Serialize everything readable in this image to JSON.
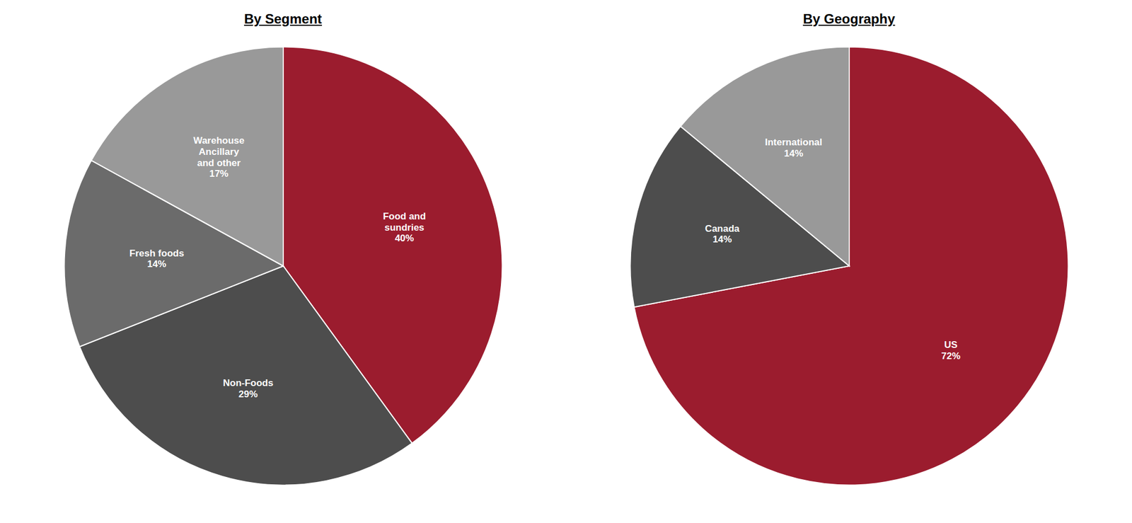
{
  "chart_data": [
    {
      "type": "pie",
      "title": "By Segment",
      "categories": [
        "Food and\nsundries\n40%",
        "Non-Foods\n29%",
        "Fresh foods\n14%",
        "Warehouse\nAncillary\nand other\n17%"
      ],
      "values": [
        40,
        29,
        14,
        17
      ],
      "colors": [
        "#9b1c2e",
        "#4d4d4d",
        "#6b6b6b",
        "#999999"
      ]
    },
    {
      "type": "pie",
      "title": "By Geography",
      "categories": [
        "US\n72%",
        "Canada\n14%",
        "International\n14%"
      ],
      "values": [
        72,
        14,
        14
      ],
      "colors": [
        "#9b1c2e",
        "#4d4d4d",
        "#999999"
      ]
    }
  ]
}
